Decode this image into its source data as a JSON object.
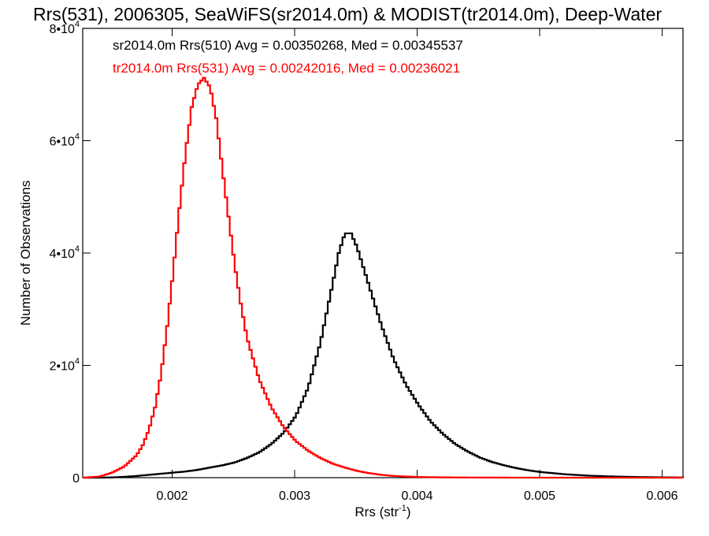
{
  "chart_data": {
    "type": "line",
    "style": "step-histogram",
    "title": "Rrs(531), 2006305, SeaWiFS(sr2014.0m) & MODIST(tr2014.0m), Deep-Water",
    "xlabel": "Rrs (str",
    "xlabel_sup": "-1",
    "xlabel_end": ")",
    "ylabel": "Number of Observations",
    "xlim": [
      0.00127,
      0.00617
    ],
    "ylim": [
      0,
      80000
    ],
    "x_ticks": [
      0.002,
      0.003,
      0.004,
      0.005,
      0.006
    ],
    "x_tick_labels": [
      "0.002",
      "0.003",
      "0.004",
      "0.005",
      "0.006"
    ],
    "y_ticks": [
      0,
      20000,
      40000,
      60000,
      80000
    ],
    "y_tick_labels": [
      {
        "base": "0",
        "exp": ""
      },
      {
        "base": "2•10",
        "exp": "4"
      },
      {
        "base": "4•10",
        "exp": "4"
      },
      {
        "base": "6•10",
        "exp": "4"
      },
      {
        "base": "8•10",
        "exp": "4"
      }
    ],
    "grid": false,
    "legend": [
      {
        "text": "sr2014.0m Rrs(510) Avg = 0.00350268, Med = 0.00345537",
        "color": "#000000"
      },
      {
        "text": "tr2014.0m Rrs(531) Avg = 0.00242016, Med = 0.00236021",
        "color": "#ff0000"
      }
    ],
    "legend_position": "top-left",
    "series": [
      {
        "color": "#000000",
        "x": [
          0.00127,
          0.0014,
          0.0015,
          0.0016,
          0.0017,
          0.0018,
          0.0019,
          0.002,
          0.0021,
          0.0022,
          0.0023,
          0.0024,
          0.0025,
          0.0026,
          0.0027,
          0.0028,
          0.0029,
          0.003,
          0.0031,
          0.0032,
          0.0033,
          0.00335,
          0.0034,
          0.00345,
          0.0035,
          0.0036,
          0.0037,
          0.0038,
          0.0039,
          0.004,
          0.0041,
          0.0042,
          0.0043,
          0.0044,
          0.0045,
          0.0046,
          0.0047,
          0.0048,
          0.0049,
          0.005,
          0.0052,
          0.0054,
          0.0056,
          0.0058,
          0.006,
          0.00617
        ],
        "y": [
          0,
          0,
          50,
          150,
          300,
          500,
          700,
          900,
          1100,
          1400,
          1800,
          2200,
          2700,
          3500,
          4500,
          6000,
          8000,
          11000,
          16000,
          24000,
          34500,
          40000,
          43500,
          43500,
          41000,
          34000,
          27000,
          21000,
          16500,
          13000,
          10000,
          7800,
          6000,
          4700,
          3600,
          2800,
          2200,
          1700,
          1300,
          1000,
          600,
          350,
          200,
          120,
          60,
          30
        ]
      },
      {
        "color": "#ff0000",
        "x": [
          0.00127,
          0.0014,
          0.0015,
          0.0016,
          0.0017,
          0.00175,
          0.0018,
          0.00185,
          0.0019,
          0.00195,
          0.002,
          0.00205,
          0.0021,
          0.00215,
          0.0022,
          0.00225,
          0.0023,
          0.00235,
          0.0024,
          0.00245,
          0.0025,
          0.00255,
          0.0026,
          0.0027,
          0.0028,
          0.0029,
          0.003,
          0.0031,
          0.0032,
          0.0033,
          0.0034,
          0.0035,
          0.0036,
          0.0037,
          0.0038,
          0.0039,
          0.004,
          0.0042,
          0.0044,
          0.0046,
          0.005,
          0.00617
        ],
        "y": [
          0,
          200,
          900,
          2000,
          4000,
          5800,
          8500,
          12500,
          18500,
          27000,
          37000,
          48000,
          58000,
          66000,
          70000,
          71200,
          69500,
          64000,
          55000,
          46500,
          38000,
          31000,
          25000,
          17500,
          12500,
          9000,
          6500,
          4800,
          3500,
          2500,
          1800,
          1200,
          800,
          500,
          300,
          200,
          120,
          60,
          30,
          15,
          5,
          0
        ]
      }
    ]
  }
}
